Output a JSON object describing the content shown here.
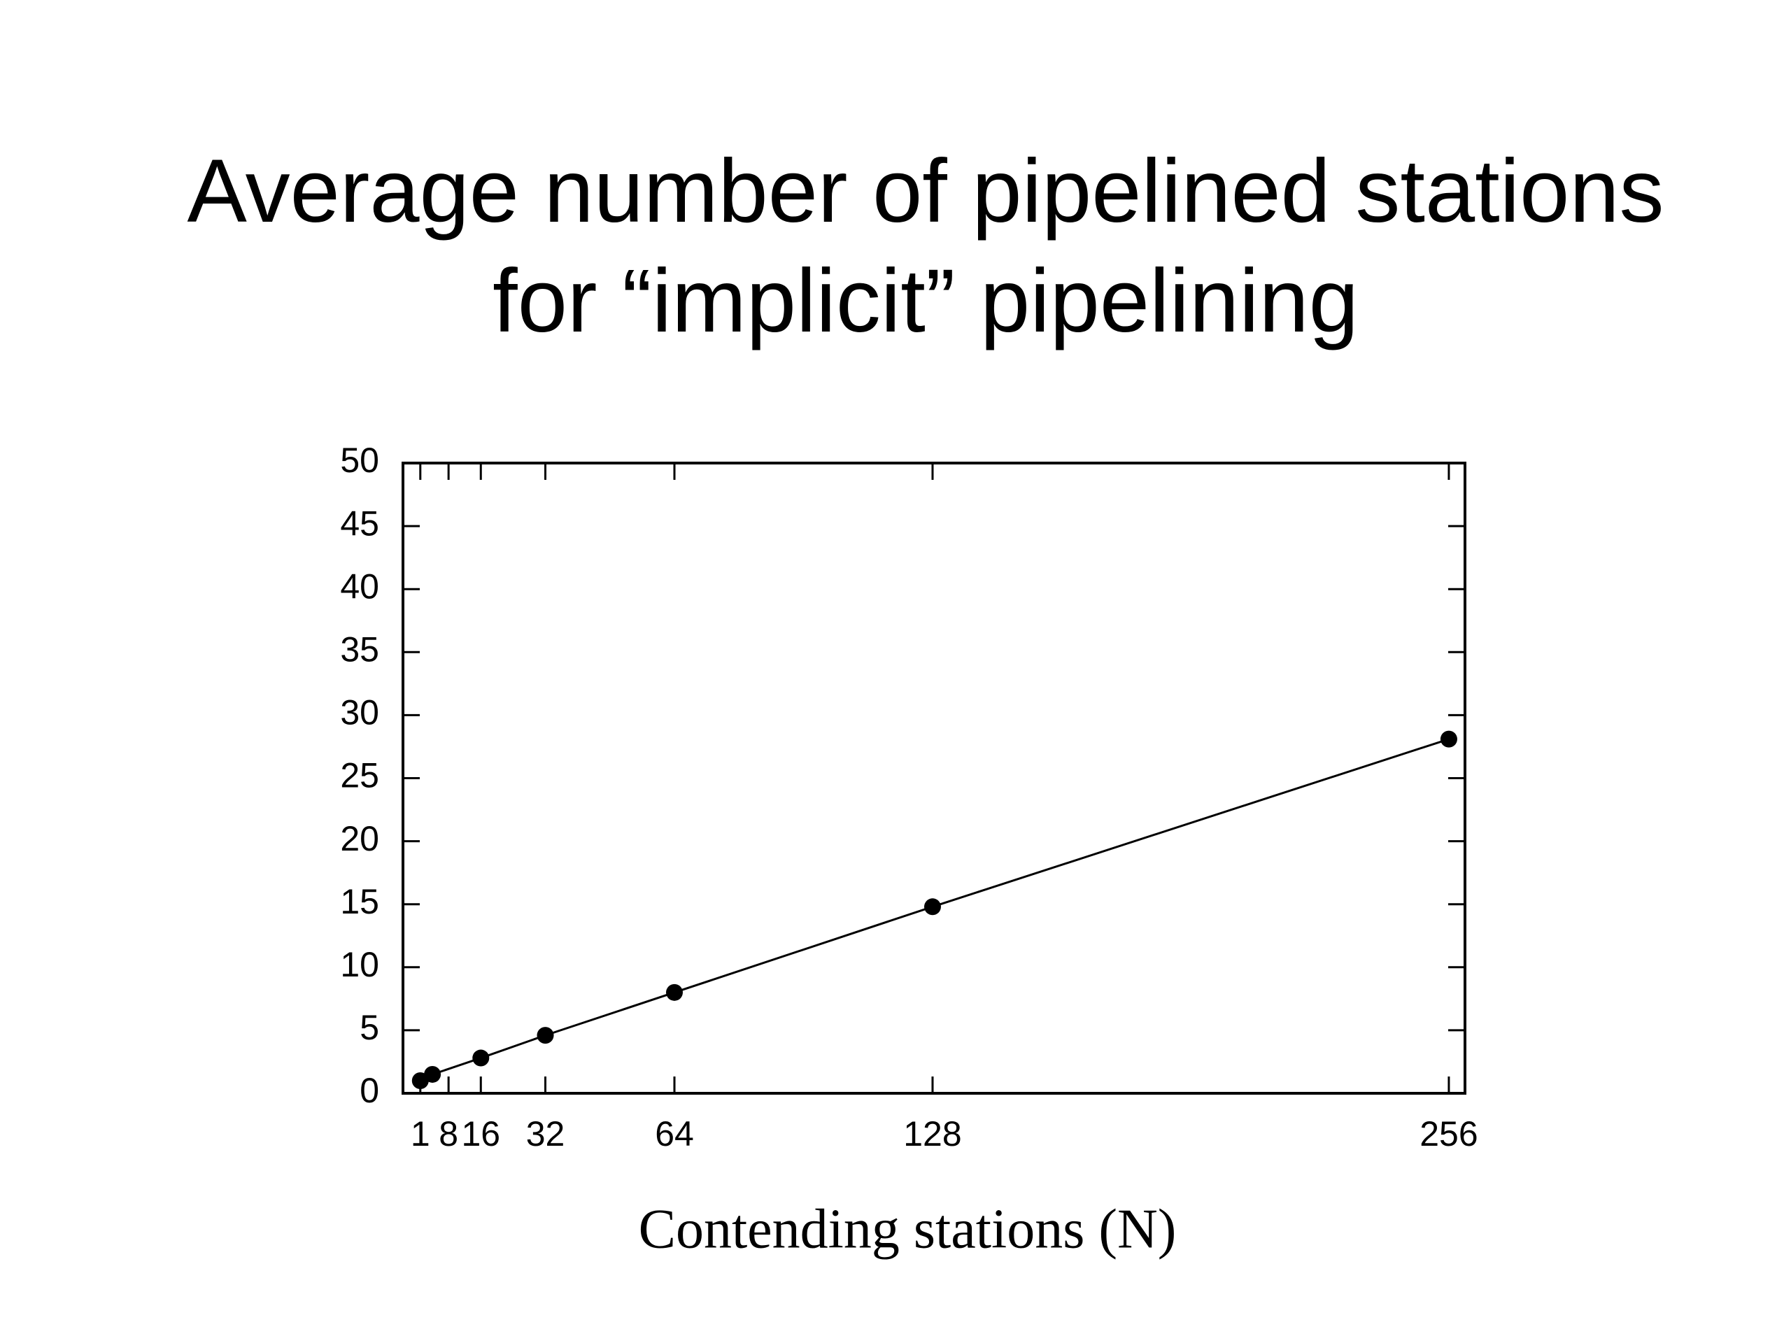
{
  "chart_data": {
    "type": "line",
    "title": [
      "Average number of pipelined stations",
      "for “implicit” pipelining"
    ],
    "x_label": "Contending stations (N)",
    "series": [
      {
        "color": "#000000",
        "x": [
          1,
          4,
          16,
          32,
          64,
          128,
          256
        ],
        "values": [
          1.0,
          1.5,
          2.8,
          4.6,
          8.0,
          14.8,
          28.1
        ]
      }
    ],
    "xlim": [
      -3.3,
      260
    ],
    "xticks": [
      1,
      8,
      16,
      32,
      64,
      128,
      256
    ],
    "ylim": [
      0,
      50
    ],
    "yticks": [
      0,
      5,
      10,
      15,
      20,
      25,
      30,
      35,
      40,
      45,
      50
    ],
    "grid": false,
    "mirror_ticks": true
  }
}
